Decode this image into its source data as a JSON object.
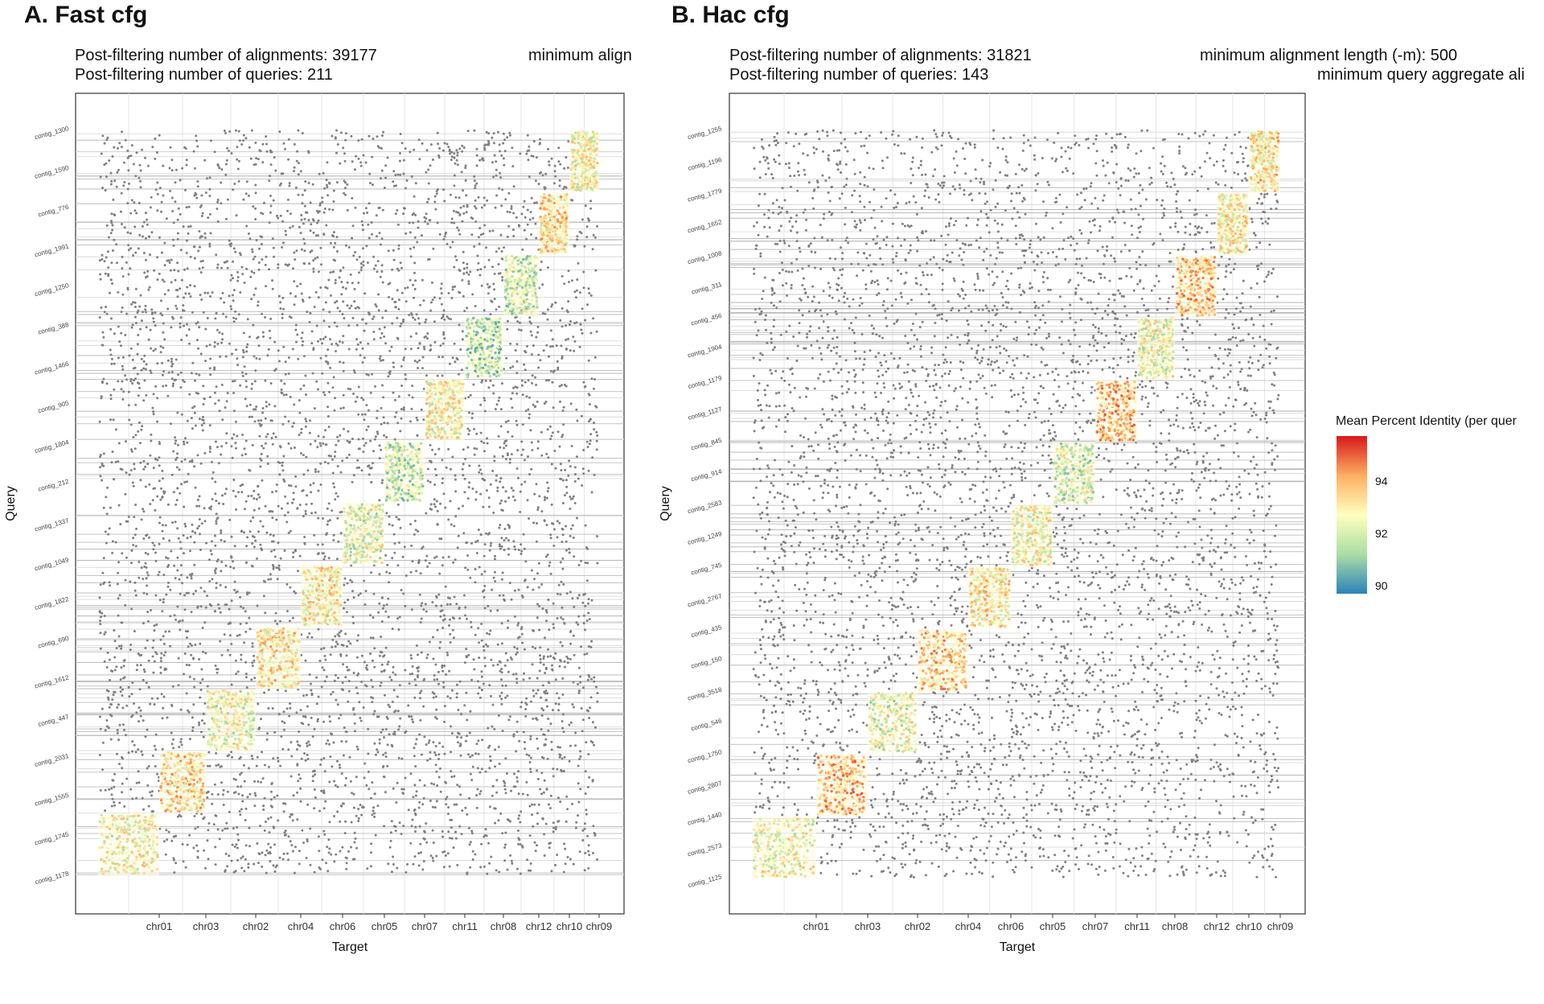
{
  "panels": [
    {
      "title": "A. Fast cfg",
      "stats": {
        "alignments": "Post-filtering number of alignments: 39177",
        "queries": "Post-filtering number of queries: 211",
        "min_alignment_length": "minimum align"
      },
      "chart_data": {
        "type": "scatter",
        "xlabel": "Target",
        "ylabel": "Query",
        "x_categories": [
          "chr01",
          "chr03",
          "chr02",
          "chr04",
          "chr06",
          "chr05",
          "chr07",
          "chr11",
          "chr08",
          "chr12",
          "chr10",
          "chr09"
        ],
        "y_tick_labels": [
          "contig_1178",
          "contig_1745",
          "contig_1555",
          "contig_2031",
          "contig_447",
          "contig_1612",
          "contig_690",
          "contig_1822",
          "contig_1049",
          "contig_1337",
          "contig_212",
          "contig_1804",
          "contig_905",
          "contig_1466",
          "contig_388",
          "contig_1250",
          "contig_1991",
          "contig_776",
          "contig_1590",
          "contig_1300"
        ],
        "diagonal_blocks": [
          {
            "target": "chr01",
            "mean_identity": 92.6
          },
          {
            "target": "chr03",
            "mean_identity": 93.4
          },
          {
            "target": "chr02",
            "mean_identity": 92.4
          },
          {
            "target": "chr04",
            "mean_identity": 93.2
          },
          {
            "target": "chr06",
            "mean_identity": 93.0
          },
          {
            "target": "chr05",
            "mean_identity": 92.3
          },
          {
            "target": "chr07",
            "mean_identity": 91.8
          },
          {
            "target": "chr11",
            "mean_identity": 92.8
          },
          {
            "target": "chr08",
            "mean_identity": 91.6
          },
          {
            "target": "chr12",
            "mean_identity": 92.0
          },
          {
            "target": "chr10",
            "mean_identity": 93.3
          },
          {
            "target": "chr09",
            "mean_identity": 92.7
          }
        ],
        "background_color": "#808080",
        "grid": true
      }
    },
    {
      "title": "B. Hac cfg",
      "stats": {
        "alignments": "Post-filtering number of alignments: 31821",
        "queries": "Post-filtering number of queries: 143",
        "min_alignment_length": "minimum alignment length (-m): 500",
        "min_query_aggregate": "minimum query aggregate ali"
      },
      "chart_data": {
        "type": "scatter",
        "xlabel": "Target",
        "ylabel": "Query",
        "x_categories": [
          "chr01",
          "chr03",
          "chr02",
          "chr04",
          "chr06",
          "chr05",
          "chr07",
          "chr11",
          "chr08",
          "chr12",
          "chr10",
          "chr09"
        ],
        "y_tick_labels": [
          "contig_1125",
          "contig_2573",
          "contig_1440",
          "contig_2807",
          "contig_1750",
          "contig_546",
          "contig_3518",
          "contig_150",
          "contig_435",
          "contig_2767",
          "contig_745",
          "contig_1249",
          "contig_2583",
          "contig_914",
          "contig_845",
          "contig_1127",
          "contig_1179",
          "contig_1904",
          "contig_456",
          "contig_311",
          "contig_1008",
          "contig_1652",
          "contig_1779",
          "contig_1196",
          "contig_1255"
        ],
        "diagonal_blocks": [
          {
            "target": "chr01",
            "mean_identity": 92.6
          },
          {
            "target": "chr03",
            "mean_identity": 93.8
          },
          {
            "target": "chr02",
            "mean_identity": 92.3
          },
          {
            "target": "chr04",
            "mean_identity": 93.6
          },
          {
            "target": "chr06",
            "mean_identity": 93.1
          },
          {
            "target": "chr05",
            "mean_identity": 92.7
          },
          {
            "target": "chr07",
            "mean_identity": 92.1
          },
          {
            "target": "chr11",
            "mean_identity": 93.9
          },
          {
            "target": "chr08",
            "mean_identity": 92.5
          },
          {
            "target": "chr12",
            "mean_identity": 93.7
          },
          {
            "target": "chr10",
            "mean_identity": 92.9
          },
          {
            "target": "chr09",
            "mean_identity": 93.2
          }
        ],
        "background_color": "#808080",
        "grid": true
      }
    }
  ],
  "legend": {
    "title": "Mean Percent Identity (per quer",
    "ticks": [
      94,
      92,
      90
    ],
    "range": [
      89.5,
      96.0
    ],
    "colors": [
      "#d7191c",
      "#fdae61",
      "#ffffbf",
      "#abdda4",
      "#2b83ba"
    ]
  }
}
